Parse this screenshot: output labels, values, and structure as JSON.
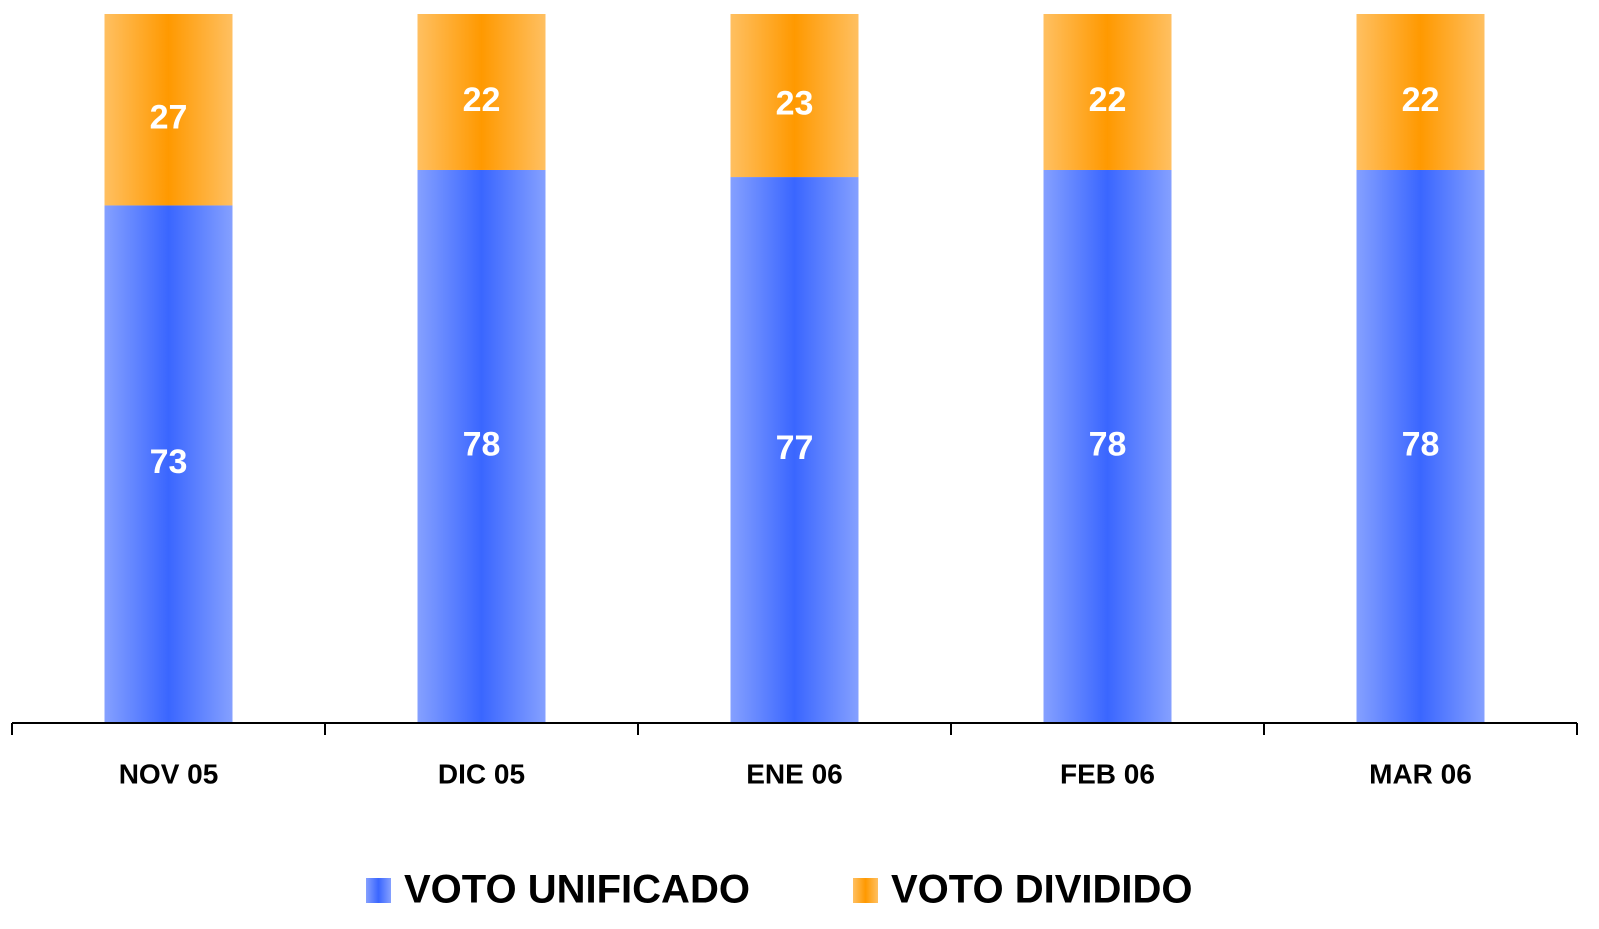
{
  "chart_data": {
    "type": "stacked_bar",
    "categories": [
      "NOV 05",
      "DIC 05",
      "ENE 06",
      "FEB 06",
      "MAR 06"
    ],
    "series": [
      {
        "name": "VOTO UNIFICADO",
        "color": "#3a66ff",
        "values": [
          73,
          78,
          77,
          78,
          78
        ]
      },
      {
        "name": "VOTO DIVIDIDO",
        "color": "#ff9900",
        "values": [
          27,
          22,
          23,
          22,
          22
        ]
      }
    ],
    "ylim": [
      0,
      100
    ],
    "legend": "bottom"
  }
}
